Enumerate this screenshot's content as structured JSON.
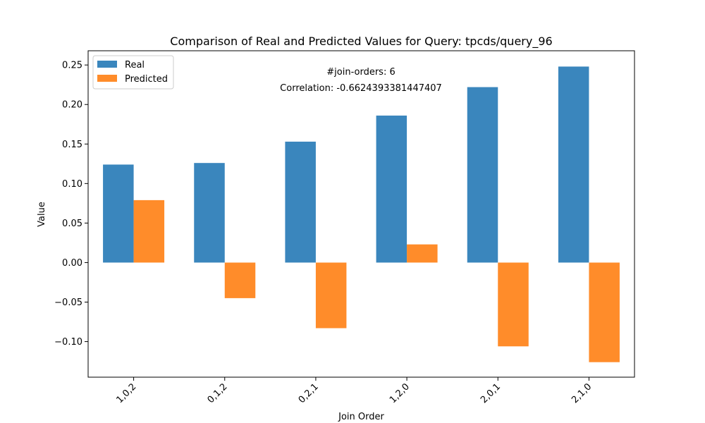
{
  "chart_data": {
    "type": "bar",
    "title": "Comparison of Real and Predicted Values for Query: tpcds/query_96",
    "xlabel": "Join Order",
    "ylabel": "Value",
    "categories": [
      "1,0,2",
      "0,1,2",
      "0,2,1",
      "1,2,0",
      "2,0,1",
      "2,1,0"
    ],
    "series": [
      {
        "name": "Real",
        "color": "#3a86bd",
        "values": [
          0.124,
          0.126,
          0.153,
          0.186,
          0.222,
          0.248
        ]
      },
      {
        "name": "Predicted",
        "color": "#ff8c2a",
        "values": [
          0.079,
          -0.045,
          -0.083,
          0.023,
          -0.106,
          -0.126
        ]
      }
    ],
    "ylim": [
      -0.145,
      0.268
    ],
    "yticks": [
      -0.1,
      -0.05,
      0.0,
      0.05,
      0.1,
      0.15,
      0.2,
      0.25
    ],
    "ytick_labels": [
      "−0.10",
      "−0.05",
      "0.00",
      "0.05",
      "0.10",
      "0.15",
      "0.20",
      "0.25"
    ],
    "annotations": [
      "#join-orders: 6",
      "Correlation: -0.6624393381447407"
    ],
    "legend_position": "top-left",
    "grid": false
  }
}
